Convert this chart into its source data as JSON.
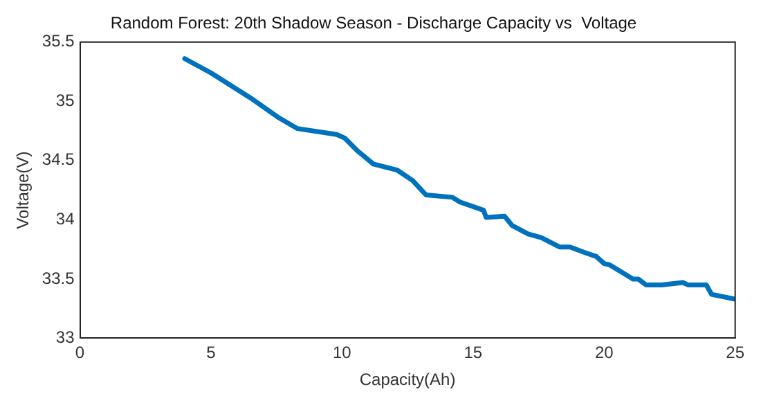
{
  "chart_data": {
    "type": "line",
    "title": "Random Forest: 20th Shadow Season - Discharge Capacity vs  Voltage",
    "xlabel": "Capacity(Ah)",
    "ylabel": "Voltage(V)",
    "series": [
      {
        "color": "#0072bd",
        "x": [
          4.0,
          5,
          6.5,
          7.6,
          8.3,
          9.8,
          10.1,
          10.6,
          11.2,
          12.1,
          12.7,
          13.2,
          14.2,
          14.5,
          15.4,
          15.5,
          16.2,
          16.5,
          17.1,
          17.6,
          18.3,
          18.7,
          19.3,
          19.7,
          20,
          20.2,
          20.8,
          21.1,
          21.3,
          21.6,
          22.2,
          23.0,
          23.2,
          23.9,
          24.1,
          25
        ],
        "values": [
          35.36,
          35.24,
          35.03,
          34.86,
          34.77,
          34.72,
          34.69,
          34.58,
          34.47,
          34.42,
          34.33,
          34.21,
          34.19,
          34.15,
          34.08,
          34.02,
          34.03,
          33.95,
          33.88,
          33.85,
          33.77,
          33.77,
          33.72,
          33.69,
          33.63,
          33.62,
          33.54,
          33.5,
          33.5,
          33.45,
          33.45,
          33.47,
          33.45,
          33.45,
          33.37,
          33.33
        ]
      }
    ],
    "xlim": [
      0,
      25
    ],
    "xticks": [
      0,
      5,
      10,
      15,
      20,
      25
    ],
    "ylim": [
      33,
      35.5
    ],
    "yticks": [
      33,
      33.5,
      34,
      34.5,
      35,
      35.5
    ],
    "grid": false,
    "legend": false,
    "marker": "none",
    "line_style": "solid"
  }
}
